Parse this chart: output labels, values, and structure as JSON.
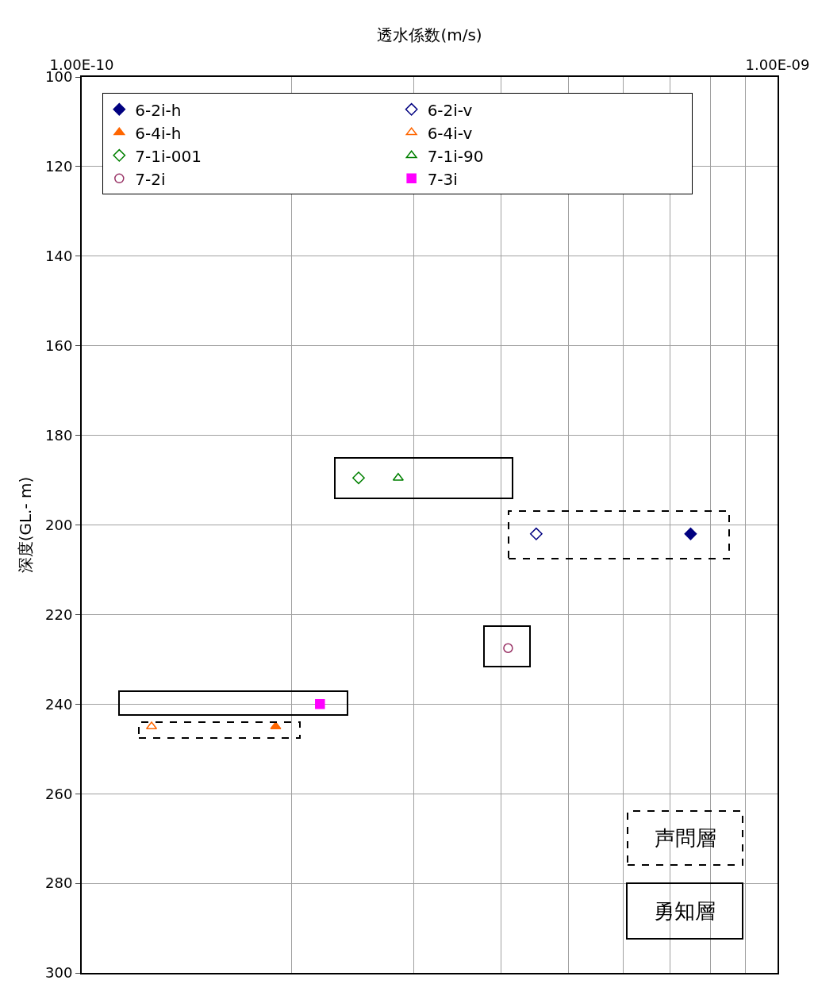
{
  "chart_data": {
    "type": "scatter",
    "xlabel": "透水係数(m/s)",
    "ylabel": "深度(GL.- m)",
    "log": "x",
    "xlim": [
      1e-10,
      1e-09
    ],
    "xticks": [
      {
        "value": 1e-10,
        "label": "1.00E-10"
      },
      {
        "value": 2e-10,
        "label": null
      },
      {
        "value": 3e-10,
        "label": null
      },
      {
        "value": 4e-10,
        "label": null
      },
      {
        "value": 5e-10,
        "label": null
      },
      {
        "value": 6e-10,
        "label": null
      },
      {
        "value": 7e-10,
        "label": null
      },
      {
        "value": 8e-10,
        "label": null
      },
      {
        "value": 9e-10,
        "label": null
      },
      {
        "value": 1e-09,
        "label": "1.00E-09"
      }
    ],
    "ylim": [
      300,
      100
    ],
    "yticks": [
      100,
      120,
      140,
      160,
      180,
      200,
      220,
      240,
      260,
      280,
      300
    ],
    "grid": true,
    "legend": "top left",
    "series": [
      {
        "name": "6-2i-h",
        "color": "#000080",
        "marker": "diamond",
        "x": [
          7.5e-10
        ],
        "values": [
          202
        ]
      },
      {
        "name": "6-2i-v",
        "color": "#000080",
        "marker": "diamond-open",
        "x": [
          4.5e-10
        ],
        "values": [
          202
        ]
      },
      {
        "name": "6-4i-h",
        "color": "#ff6600",
        "marker": "triangle-up",
        "x": [
          1.9e-10
        ],
        "values": [
          245
        ]
      },
      {
        "name": "6-4i-v",
        "color": "#ff6600",
        "marker": "triangle-up-open",
        "x": [
          1.26e-10
        ],
        "values": [
          245
        ]
      },
      {
        "name": "7-1i-001",
        "color": "#008000",
        "marker": "diamond-open",
        "x": [
          2.5e-10
        ],
        "values": [
          189.5
        ]
      },
      {
        "name": "7-1i-90",
        "color": "#008000",
        "marker": "triangle-up-open",
        "x": [
          2.85e-10
        ],
        "values": [
          189.5
        ]
      },
      {
        "name": "7-2i",
        "color": "#993366",
        "marker": "circle-open",
        "x": [
          4.1e-10
        ],
        "values": [
          227.5
        ]
      },
      {
        "name": "7-3i",
        "color": "#ff00ff",
        "marker": "square",
        "x": [
          2.2e-10
        ],
        "values": [
          240
        ]
      }
    ],
    "annotations": [
      "声問層",
      "勇知層"
    ]
  }
}
